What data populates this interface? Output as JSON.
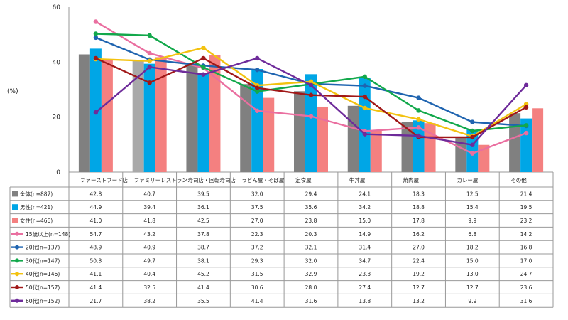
{
  "chart_data": {
    "type": "bar+line",
    "ylabel": "(%)",
    "ylim": [
      0,
      60
    ],
    "yticks": [
      0,
      20,
      40,
      60
    ],
    "categories": [
      "ファーストフード店",
      "ファミリーレストラン",
      "寿司店・回転寿司店",
      "うどん屋・そば屋",
      "定食屋",
      "牛丼屋",
      "焼肉屋",
      "カレー屋",
      "その他"
    ],
    "bar_series": [
      {
        "name": "全体(n=887)",
        "color": "#808080",
        "values": [
          42.8,
          40.7,
          39.5,
          32.0,
          29.4,
          24.1,
          18.3,
          12.5,
          21.4
        ]
      },
      {
        "name": "男性(n=421)",
        "color": "#00a6e6",
        "values": [
          44.9,
          39.4,
          36.1,
          37.5,
          35.6,
          34.2,
          18.8,
          15.4,
          19.5
        ]
      },
      {
        "name": "女性(n=466)",
        "color": "#f48080",
        "values": [
          41.0,
          41.8,
          42.5,
          27.0,
          23.8,
          15.0,
          17.8,
          9.9,
          23.2
        ]
      }
    ],
    "line_series": [
      {
        "name": "15歳以上(n=148)",
        "color": "#ea6fa0",
        "values": [
          54.7,
          43.2,
          37.8,
          22.3,
          20.3,
          14.9,
          16.2,
          6.8,
          14.2
        ]
      },
      {
        "name": "20代(n=137)",
        "color": "#1f64b0",
        "values": [
          48.9,
          40.9,
          38.7,
          37.2,
          32.1,
          31.4,
          27.0,
          18.2,
          16.8
        ]
      },
      {
        "name": "30代(n=147)",
        "color": "#12a84b",
        "values": [
          50.3,
          49.7,
          38.1,
          29.3,
          32.0,
          34.7,
          22.4,
          15.0,
          17.0
        ]
      },
      {
        "name": "40代(n=146)",
        "color": "#f3c20f",
        "values": [
          41.1,
          40.4,
          45.2,
          31.5,
          32.9,
          23.3,
          19.2,
          13.0,
          24.7
        ]
      },
      {
        "name": "50代(n=157)",
        "color": "#a01818",
        "values": [
          41.4,
          32.5,
          41.4,
          30.6,
          28.0,
          27.4,
          12.7,
          12.7,
          23.6
        ]
      },
      {
        "name": "60代(n=152)",
        "color": "#6e2b9a",
        "values": [
          21.7,
          38.2,
          35.5,
          41.4,
          31.6,
          13.8,
          13.2,
          9.9,
          31.6
        ]
      }
    ]
  }
}
